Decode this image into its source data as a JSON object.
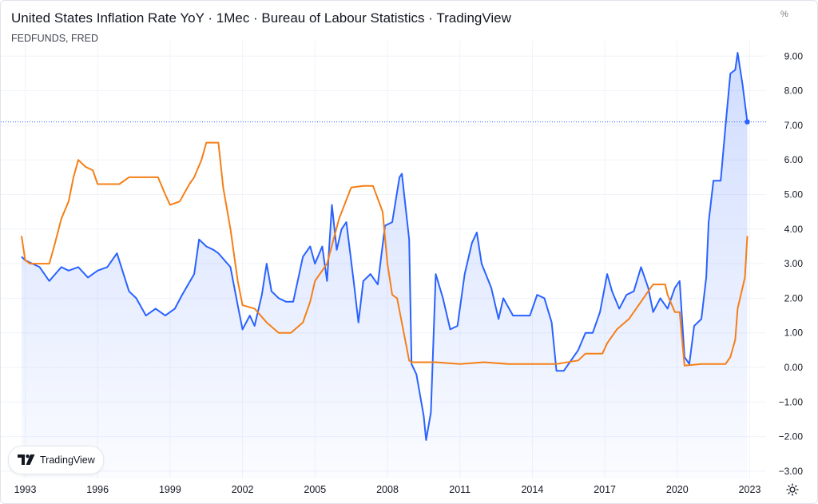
{
  "header": {
    "title": "United States Inflation Rate YoY · 1Mec · Bureau of Labour Statistics · TradingView",
    "subtitle": "FEDFUNDS, FRED",
    "unit": "%"
  },
  "watermark": {
    "label": "TradingView",
    "icon": "tradingview-logo-icon"
  },
  "settings": {
    "icon": "gear-icon"
  },
  "colors": {
    "inflation": "#2962ff",
    "fedfunds": "#f57f17",
    "grid": "#f0f3fa",
    "dotted": "#2962ff"
  },
  "chart_data": {
    "type": "line",
    "title": "United States Inflation Rate YoY · 1Mec · Bureau of Labour Statistics · TradingView",
    "ylabel": "%",
    "ylim": [
      -3,
      10
    ],
    "xlim": [
      1992.8,
      2023.7
    ],
    "y_ticks": [
      "9.00",
      "8.00",
      "7.00",
      "6.00",
      "5.00",
      "4.00",
      "3.00",
      "2.00",
      "1.00",
      "0.00",
      "−1.00",
      "−2.00",
      "−3.00"
    ],
    "y_tick_values": [
      9,
      8,
      7,
      6,
      5,
      4,
      3,
      2,
      1,
      0,
      -1,
      -2,
      -3
    ],
    "x_ticks": [
      "1993",
      "1996",
      "1999",
      "2002",
      "2005",
      "2008",
      "2011",
      "2014",
      "2017",
      "2020",
      "2023"
    ],
    "x_tick_values": [
      1993,
      1996,
      1999,
      2002,
      2005,
      2008,
      2011,
      2014,
      2017,
      2020,
      2023
    ],
    "last_value_line": 7.1,
    "grid": true,
    "series": [
      {
        "name": "United States Inflation Rate YoY",
        "area": true,
        "x": [
          1992.85,
          1993.0,
          1993.3,
          1993.6,
          1994.0,
          1994.5,
          1994.8,
          1995.2,
          1995.6,
          1996.0,
          1996.4,
          1996.8,
          1997.3,
          1997.6,
          1998.0,
          1998.4,
          1998.8,
          1999.2,
          1999.5,
          2000.0,
          2000.2,
          2000.5,
          2000.8,
          2001.0,
          2001.5,
          2001.8,
          2002.0,
          2002.3,
          2002.5,
          2002.8,
          2003.0,
          2003.2,
          2003.5,
          2003.8,
          2004.1,
          2004.5,
          2004.8,
          2005.0,
          2005.3,
          2005.5,
          2005.7,
          2005.9,
          2006.1,
          2006.3,
          2006.6,
          2006.8,
          2007.0,
          2007.3,
          2007.6,
          2007.9,
          2008.2,
          2008.5,
          2008.6,
          2008.9,
          2009.0,
          2009.2,
          2009.5,
          2009.6,
          2009.8,
          2010.0,
          2010.3,
          2010.6,
          2010.9,
          2011.2,
          2011.5,
          2011.7,
          2011.9,
          2012.3,
          2012.6,
          2012.8,
          2013.2,
          2013.6,
          2013.9,
          2014.2,
          2014.5,
          2014.8,
          2015.0,
          2015.3,
          2015.6,
          2015.9,
          2016.2,
          2016.5,
          2016.8,
          2017.1,
          2017.3,
          2017.6,
          2017.9,
          2018.2,
          2018.5,
          2018.8,
          2019.0,
          2019.3,
          2019.6,
          2019.9,
          2020.1,
          2020.3,
          2020.5,
          2020.7,
          2021.0,
          2021.2,
          2021.3,
          2021.5,
          2021.8,
          2022.0,
          2022.2,
          2022.4,
          2022.5,
          2022.7,
          2022.9
        ],
        "y": [
          3.2,
          3.1,
          3.0,
          2.9,
          2.5,
          2.9,
          2.8,
          2.9,
          2.6,
          2.8,
          2.9,
          3.3,
          2.2,
          2.0,
          1.5,
          1.7,
          1.5,
          1.7,
          2.1,
          2.7,
          3.7,
          3.5,
          3.4,
          3.3,
          2.9,
          1.8,
          1.1,
          1.5,
          1.2,
          2.1,
          3.0,
          2.2,
          2.0,
          1.9,
          1.9,
          3.2,
          3.5,
          3.0,
          3.5,
          2.5,
          4.7,
          3.4,
          4.0,
          4.2,
          2.5,
          1.3,
          2.5,
          2.7,
          2.4,
          4.1,
          4.2,
          5.5,
          5.6,
          3.7,
          0.1,
          -0.2,
          -1.4,
          -2.1,
          -1.3,
          2.7,
          2.0,
          1.1,
          1.2,
          2.7,
          3.6,
          3.9,
          3.0,
          2.3,
          1.4,
          2.0,
          1.5,
          1.5,
          1.5,
          2.1,
          2.0,
          1.3,
          -0.1,
          -0.1,
          0.2,
          0.5,
          1.0,
          1.0,
          1.6,
          2.7,
          2.2,
          1.7,
          2.1,
          2.2,
          2.9,
          2.3,
          1.6,
          2.0,
          1.7,
          2.3,
          2.5,
          0.3,
          0.1,
          1.2,
          1.4,
          2.6,
          4.2,
          5.4,
          5.4,
          7.0,
          8.5,
          8.6,
          9.1,
          8.2,
          7.1
        ]
      },
      {
        "name": "FEDFUNDS",
        "area": false,
        "x": [
          1992.85,
          1993.0,
          1993.2,
          1993.6,
          1994.0,
          1994.2,
          1994.5,
          1994.8,
          1995.0,
          1995.2,
          1995.5,
          1995.8,
          1996.0,
          1996.4,
          1996.9,
          1997.3,
          1997.6,
          1998.0,
          1998.5,
          1998.8,
          1999.0,
          1999.4,
          1999.8,
          2000.0,
          2000.3,
          2000.5,
          2001.0,
          2001.2,
          2001.5,
          2001.8,
          2002.0,
          2002.5,
          2003.0,
          2003.5,
          2004.0,
          2004.5,
          2004.8,
          2005.0,
          2005.5,
          2006.0,
          2006.5,
          2007.0,
          2007.4,
          2007.8,
          2008.0,
          2008.2,
          2008.4,
          2008.9,
          2009.0,
          2010.0,
          2011.0,
          2012.0,
          2013.0,
          2014.0,
          2015.0,
          2015.9,
          2016.2,
          2016.9,
          2017.1,
          2017.5,
          2018.0,
          2018.5,
          2018.8,
          2019.0,
          2019.5,
          2019.6,
          2019.9,
          2020.1,
          2020.3,
          2021.0,
          2022.0,
          2022.2,
          2022.4,
          2022.5,
          2022.8,
          2022.9
        ],
        "y": [
          3.8,
          3.1,
          3.0,
          3.0,
          3.0,
          3.5,
          4.3,
          4.8,
          5.5,
          6.0,
          5.8,
          5.7,
          5.3,
          5.3,
          5.3,
          5.5,
          5.5,
          5.5,
          5.5,
          5.0,
          4.7,
          4.8,
          5.3,
          5.5,
          6.0,
          6.5,
          6.5,
          5.2,
          4.0,
          2.5,
          1.8,
          1.7,
          1.3,
          1.0,
          1.0,
          1.3,
          1.9,
          2.5,
          3.0,
          4.3,
          5.2,
          5.25,
          5.25,
          4.5,
          3.0,
          2.1,
          2.0,
          0.2,
          0.15,
          0.15,
          0.1,
          0.15,
          0.1,
          0.1,
          0.1,
          0.2,
          0.4,
          0.4,
          0.7,
          1.1,
          1.4,
          1.9,
          2.2,
          2.4,
          2.4,
          2.1,
          1.6,
          1.6,
          0.05,
          0.1,
          0.1,
          0.3,
          0.8,
          1.7,
          2.6,
          3.8
        ]
      }
    ]
  }
}
